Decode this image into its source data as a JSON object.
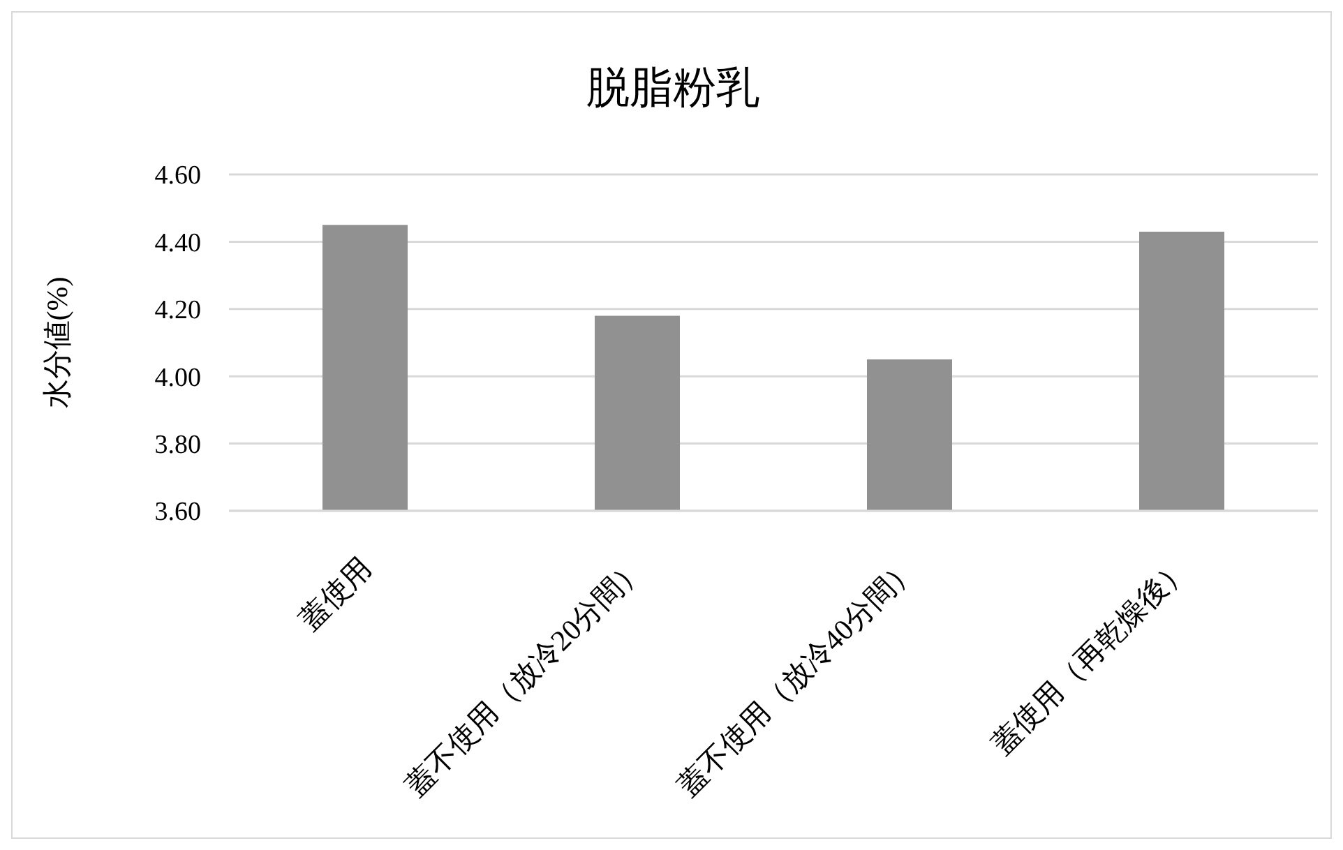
{
  "chart_data": {
    "type": "bar",
    "title": "脱脂粉乳",
    "ylabel": "水分値(%)",
    "categories": [
      "蓋使用",
      "蓋不使用（放冷20分間）",
      "蓋不使用（放冷40分間）",
      "蓋使用（再乾燥後）"
    ],
    "values": [
      4.45,
      4.18,
      4.05,
      4.43
    ],
    "color": "#919191",
    "ylim": [
      3.6,
      4.6
    ],
    "yticks": [
      {
        "value": 3.6,
        "label": "3.60"
      },
      {
        "value": 3.8,
        "label": "3.80"
      },
      {
        "value": 4.0,
        "label": "4.00"
      },
      {
        "value": 4.2,
        "label": "4.20"
      },
      {
        "value": 4.4,
        "label": "4.40"
      },
      {
        "value": 4.6,
        "label": "4.60"
      }
    ],
    "grid": "y"
  }
}
